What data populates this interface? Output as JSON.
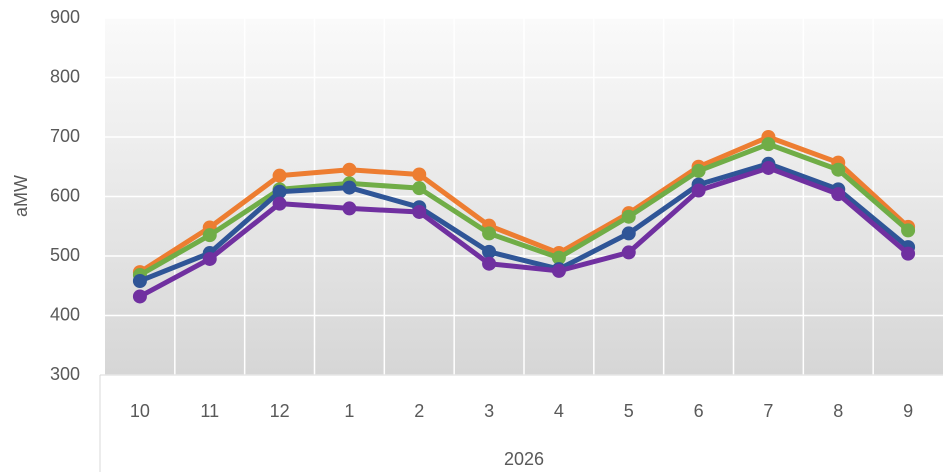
{
  "chart_data": {
    "type": "line",
    "y_label": "aMW",
    "categories": [
      "10",
      "11",
      "12",
      "1",
      "2",
      "3",
      "4",
      "5",
      "6",
      "7",
      "8",
      "9"
    ],
    "category_group": "2026",
    "series": [
      {
        "color": "#ED7D31",
        "values": [
          473,
          548,
          635,
          645,
          637,
          551,
          505,
          572,
          650,
          700,
          657,
          549
        ]
      },
      {
        "color": "#70AD47",
        "values": [
          468,
          535,
          612,
          622,
          614,
          538,
          497,
          566,
          643,
          688,
          645,
          543
        ]
      },
      {
        "color": "#2F5597",
        "values": [
          458,
          505,
          608,
          615,
          582,
          507,
          478,
          538,
          620,
          655,
          612,
          515
        ]
      },
      {
        "color": "#7030A0",
        "values": [
          432,
          495,
          588,
          580,
          574,
          487,
          475,
          506,
          610,
          648,
          604,
          504
        ]
      }
    ],
    "ylim": [
      300,
      900
    ],
    "yticks": [
      300,
      400,
      500,
      600,
      700,
      800,
      900
    ],
    "grid": true
  }
}
